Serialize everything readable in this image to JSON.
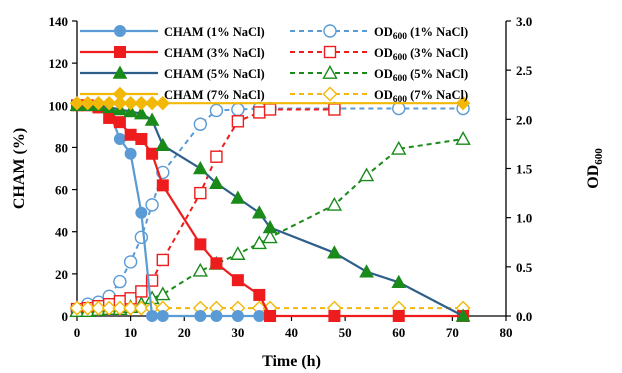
{
  "chart_data": {
    "type": "line",
    "xlabel": "Time (h)",
    "ylabel": "CHAM (%)",
    "y2label": "OD",
    "y2label_sub": "600",
    "xlim": [
      0,
      80
    ],
    "ylim": [
      0,
      140
    ],
    "y2lim": [
      0,
      3.0
    ],
    "x_ticks": [
      "0",
      "10",
      "20",
      "30",
      "40",
      "50",
      "60",
      "70",
      "80"
    ],
    "y_ticks": [
      "0",
      "20",
      "40",
      "60",
      "80",
      "100",
      "120",
      "140"
    ],
    "y2_ticks": [
      "0.0",
      "0.5",
      "1.0",
      "1.5",
      "2.0",
      "2.5",
      "3.0"
    ],
    "grid": false,
    "legend_position": "top",
    "series": [
      {
        "name": "CHAM (1% NaCl)",
        "axis": "left",
        "marker": "circle",
        "filled": true,
        "dashed": false,
        "color": "#5b9bd5",
        "line_color": "#5b9bd5",
        "x": [
          0,
          2,
          4,
          6,
          8,
          10,
          12,
          14,
          16,
          23,
          26,
          30,
          34
        ],
        "y": [
          100,
          100,
          99,
          97,
          84,
          77,
          49,
          0,
          0,
          0,
          0,
          0,
          0
        ]
      },
      {
        "name": "CHAM (3% NaCl)",
        "axis": "left",
        "marker": "square",
        "filled": true,
        "dashed": false,
        "color": "#ee1c1c",
        "line_color": "#ee1c1c",
        "x": [
          0,
          2,
          4,
          6,
          8,
          10,
          12,
          14,
          16,
          23,
          26,
          30,
          34,
          36,
          48,
          60,
          72
        ],
        "y": [
          100,
          100,
          99,
          94,
          92,
          86,
          84,
          77,
          62,
          34,
          25,
          17,
          10,
          0,
          0,
          0,
          0
        ]
      },
      {
        "name": "CHAM (5% NaCl)",
        "axis": "left",
        "marker": "triangle",
        "filled": true,
        "dashed": false,
        "color": "#1a8a1a",
        "line_color": "#2e5f8a",
        "x": [
          0,
          2,
          4,
          6,
          8,
          10,
          12,
          14,
          16,
          23,
          26,
          30,
          34,
          36,
          48,
          54,
          60,
          72
        ],
        "y": [
          100,
          100,
          100,
          99,
          98,
          97,
          96,
          93,
          81,
          70,
          63,
          56,
          49,
          42,
          30,
          21,
          16,
          0
        ]
      },
      {
        "name": "CHAM (7% NaCl)",
        "axis": "left",
        "marker": "diamond",
        "filled": true,
        "dashed": false,
        "color": "#f2b807",
        "line_color": "#f2b807",
        "x": [
          0,
          2,
          4,
          6,
          8,
          10,
          12,
          14,
          16,
          72
        ],
        "y": [
          101,
          101,
          101,
          101,
          101,
          101,
          101,
          101,
          101,
          101
        ]
      },
      {
        "name": "OD600 (1% NaCl)",
        "axis": "right",
        "marker": "circle",
        "filled": false,
        "dashed": true,
        "color": "#5b9bd5",
        "line_color": "#5b9bd5",
        "x": [
          0,
          2,
          4,
          6,
          8,
          10,
          12,
          14,
          16,
          23,
          26,
          30,
          34,
          36,
          48,
          60,
          72
        ],
        "y": [
          0.07,
          0.12,
          0.14,
          0.2,
          0.35,
          0.55,
          0.8,
          1.13,
          1.46,
          1.95,
          2.09,
          2.1,
          2.11,
          2.11,
          2.11,
          2.11,
          2.11
        ]
      },
      {
        "name": "OD600 (3% NaCl)",
        "axis": "right",
        "marker": "square",
        "filled": false,
        "dashed": true,
        "color": "#ee1c1c",
        "line_color": "#ee1c1c",
        "x": [
          0,
          2,
          4,
          6,
          8,
          10,
          12,
          14,
          16,
          23,
          26,
          30,
          34,
          36,
          48
        ],
        "y": [
          0.07,
          0.08,
          0.1,
          0.12,
          0.15,
          0.18,
          0.25,
          0.36,
          0.57,
          1.25,
          1.62,
          1.98,
          2.07,
          2.1,
          2.1
        ]
      },
      {
        "name": "OD600 (5% NaCl)",
        "axis": "right",
        "marker": "triangle",
        "filled": false,
        "dashed": true,
        "color": "#1a8a1a",
        "line_color": "#1a8a1a",
        "x": [
          0,
          2,
          4,
          6,
          8,
          10,
          12,
          14,
          16,
          23,
          26,
          30,
          34,
          36,
          48,
          54,
          60,
          72
        ],
        "y": [
          0.05,
          0.05,
          0.06,
          0.07,
          0.07,
          0.09,
          0.12,
          0.18,
          0.22,
          0.46,
          0.53,
          0.63,
          0.74,
          0.8,
          1.13,
          1.43,
          1.7,
          1.8
        ]
      },
      {
        "name": "OD600 (7% NaCl)",
        "axis": "right",
        "marker": "diamond",
        "filled": false,
        "dashed": true,
        "color": "#f2b807",
        "line_color": "#f2b807",
        "x": [
          0,
          2,
          4,
          6,
          8,
          10,
          12,
          14,
          16,
          23,
          26,
          30,
          34,
          36,
          48,
          60,
          72
        ],
        "y": [
          0.08,
          0.08,
          0.08,
          0.08,
          0.08,
          0.08,
          0.08,
          0.08,
          0.08,
          0.08,
          0.08,
          0.08,
          0.08,
          0.08,
          0.08,
          0.08,
          0.08
        ]
      }
    ],
    "legend": [
      {
        "prefix": "CHAM (1% NaCl)",
        "sub": "",
        "suffix": ""
      },
      {
        "prefix": "CHAM (3% NaCl)",
        "sub": "",
        "suffix": ""
      },
      {
        "prefix": "CHAM (5% NaCl)",
        "sub": "",
        "suffix": ""
      },
      {
        "prefix": "CHAM (7% NaCl)",
        "sub": "",
        "suffix": ""
      },
      {
        "prefix": "OD",
        "sub": "600",
        "suffix": " (1% NaCl)"
      },
      {
        "prefix": "OD",
        "sub": "600",
        "suffix": " (3% NaCl)"
      },
      {
        "prefix": "OD",
        "sub": "600",
        "suffix": " (5% NaCl)"
      },
      {
        "prefix": "OD",
        "sub": "600",
        "suffix": " (7% NaCl)"
      }
    ]
  }
}
